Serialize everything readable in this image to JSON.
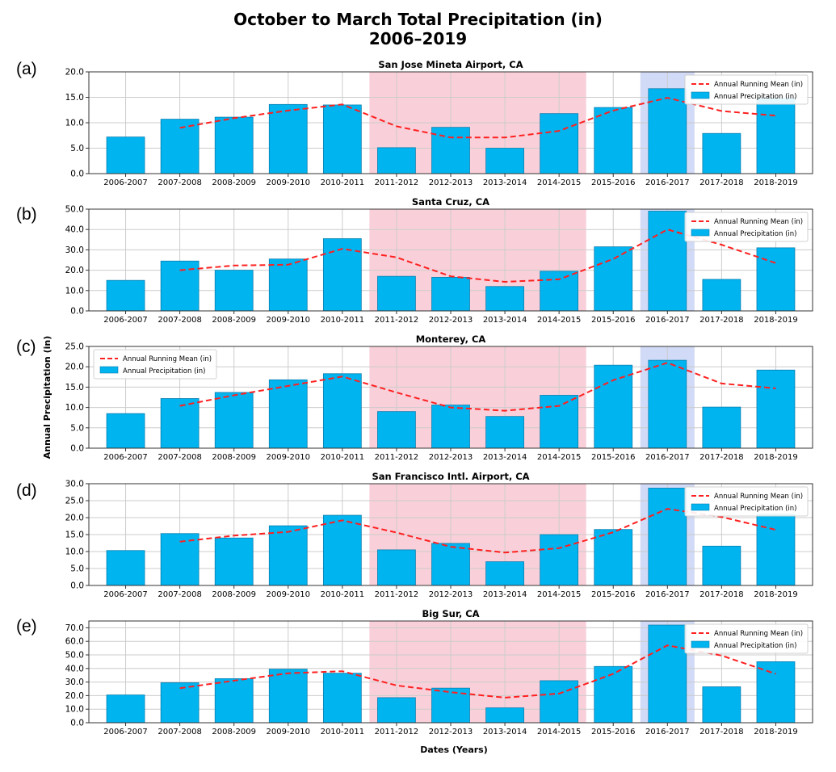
{
  "figure": {
    "title_line1": "October to March Total Precipitation (in)",
    "title_line2": "2006–2019",
    "ylabel": "Annual Precipitation (in)",
    "xlabel": "Dates (Years)",
    "colors": {
      "bar": "#00b4f0",
      "bar_edge": "#0a7fb0",
      "mean_line": "#ff2020",
      "drought_shade": "#f8c8d2",
      "wet_shade": "#c9d3f5",
      "grid": "#cccccc"
    }
  },
  "chart_data": [
    {
      "type": "bar",
      "panel": "(a)",
      "title": "San Jose Mineta Airport, CA",
      "categories": [
        "2006-2007",
        "2007-2008",
        "2008-2009",
        "2009-2010",
        "2010-2011",
        "2011-2012",
        "2012-2013",
        "2013-2014",
        "2014-2015",
        "2015-2016",
        "2016-2017",
        "2017-2018",
        "2018-2019"
      ],
      "series": [
        {
          "name": "Annual Precipitation (in)",
          "kind": "bar",
          "values": [
            7.2,
            10.7,
            11.1,
            13.6,
            13.5,
            5.1,
            9.1,
            5.0,
            11.8,
            13.0,
            16.7,
            7.9,
            14.8
          ]
        },
        {
          "name": "Annual Running Mean (in)",
          "kind": "line",
          "values": [
            null,
            9.0,
            10.9,
            12.4,
            13.6,
            9.3,
            7.1,
            7.1,
            8.4,
            12.4,
            14.9,
            12.3,
            11.4
          ]
        }
      ],
      "ylim": [
        0,
        20
      ],
      "yticks": [
        "0.0",
        "5.0",
        "10.0",
        "15.0",
        "20.0"
      ],
      "ytick_values": [
        0,
        5,
        10,
        15,
        20
      ],
      "legend_position": "top-right",
      "shaded_ranges": [
        {
          "kind": "drought",
          "from": "2011-2012",
          "to": "2014-2015"
        },
        {
          "kind": "wet",
          "from": "2016-2017",
          "to": "2016-2017"
        }
      ]
    },
    {
      "type": "bar",
      "panel": "(b)",
      "title": "Santa Cruz, CA",
      "categories": [
        "2006-2007",
        "2007-2008",
        "2008-2009",
        "2009-2010",
        "2010-2011",
        "2011-2012",
        "2012-2013",
        "2013-2014",
        "2014-2015",
        "2015-2016",
        "2016-2017",
        "2017-2018",
        "2018-2019"
      ],
      "series": [
        {
          "name": "Annual Precipitation (in)",
          "kind": "bar",
          "values": [
            15.0,
            24.5,
            20.0,
            25.5,
            35.5,
            17.0,
            16.5,
            12.0,
            19.5,
            31.5,
            49.0,
            15.5,
            31.0
          ]
        },
        {
          "name": "Annual Running Mean (in)",
          "kind": "line",
          "values": [
            null,
            20.0,
            22.3,
            22.7,
            30.5,
            26.3,
            17.0,
            14.3,
            15.5,
            25.5,
            40.0,
            32.5,
            23.5
          ]
        }
      ],
      "ylim": [
        0,
        50
      ],
      "yticks": [
        "0.0",
        "10.0",
        "20.0",
        "30.0",
        "40.0",
        "50.0"
      ],
      "ytick_values": [
        0,
        10,
        20,
        30,
        40,
        50
      ],
      "legend_position": "top-right",
      "shaded_ranges": [
        {
          "kind": "drought",
          "from": "2011-2012",
          "to": "2014-2015"
        },
        {
          "kind": "wet",
          "from": "2016-2017",
          "to": "2016-2017"
        }
      ]
    },
    {
      "type": "bar",
      "panel": "(c)",
      "title": "Monterey, CA",
      "categories": [
        "2006-2007",
        "2007-2008",
        "2008-2009",
        "2009-2010",
        "2010-2011",
        "2011-2012",
        "2012-2013",
        "2013-2014",
        "2014-2015",
        "2015-2016",
        "2016-2017",
        "2017-2018",
        "2018-2019"
      ],
      "series": [
        {
          "name": "Annual Precipitation (in)",
          "kind": "bar",
          "values": [
            8.5,
            12.2,
            13.7,
            16.8,
            18.3,
            9.0,
            10.6,
            7.8,
            13.0,
            20.4,
            21.6,
            10.1,
            19.2
          ]
        },
        {
          "name": "Annual Running Mean (in)",
          "kind": "line",
          "values": [
            null,
            10.4,
            13.0,
            15.3,
            17.6,
            13.7,
            10.0,
            9.2,
            10.4,
            16.7,
            21.0,
            15.9,
            14.7
          ]
        }
      ],
      "ylim": [
        0,
        25
      ],
      "yticks": [
        "0.0",
        "5.0",
        "10.0",
        "15.0",
        "20.0",
        "25.0"
      ],
      "ytick_values": [
        0,
        5,
        10,
        15,
        20,
        25
      ],
      "legend_position": "top-left",
      "shaded_ranges": [
        {
          "kind": "drought",
          "from": "2011-2012",
          "to": "2014-2015"
        },
        {
          "kind": "wet",
          "from": "2016-2017",
          "to": "2016-2017"
        }
      ]
    },
    {
      "type": "bar",
      "panel": "(d)",
      "title": "San Francisco Intl. Airport, CA",
      "categories": [
        "2006-2007",
        "2007-2008",
        "2008-2009",
        "2009-2010",
        "2010-2011",
        "2011-2012",
        "2012-2013",
        "2013-2014",
        "2014-2015",
        "2015-2016",
        "2016-2017",
        "2017-2018",
        "2018-2019"
      ],
      "series": [
        {
          "name": "Annual Precipitation (in)",
          "kind": "bar",
          "values": [
            10.3,
            15.3,
            14.0,
            17.6,
            20.7,
            10.5,
            12.4,
            7.0,
            15.0,
            16.5,
            28.7,
            11.6,
            21.0
          ]
        },
        {
          "name": "Annual Running Mean (in)",
          "kind": "line",
          "values": [
            null,
            12.9,
            14.7,
            15.8,
            19.2,
            15.6,
            11.4,
            9.7,
            11.0,
            15.7,
            22.6,
            20.2,
            16.4
          ]
        }
      ],
      "ylim": [
        0,
        30
      ],
      "yticks": [
        "0.0",
        "5.0",
        "10.0",
        "15.0",
        "20.0",
        "25.0",
        "30.0"
      ],
      "ytick_values": [
        0,
        5,
        10,
        15,
        20,
        25,
        30
      ],
      "legend_position": "top-right",
      "shaded_ranges": [
        {
          "kind": "drought",
          "from": "2011-2012",
          "to": "2014-2015"
        },
        {
          "kind": "wet",
          "from": "2016-2017",
          "to": "2016-2017"
        }
      ]
    },
    {
      "type": "bar",
      "panel": "(e)",
      "title": "Big Sur, CA",
      "categories": [
        "2006-2007",
        "2007-2008",
        "2008-2009",
        "2009-2010",
        "2010-2011",
        "2011-2012",
        "2012-2013",
        "2013-2014",
        "2014-2015",
        "2015-2016",
        "2016-2017",
        "2017-2018",
        "2018-2019"
      ],
      "series": [
        {
          "name": "Annual Precipitation (in)",
          "kind": "bar",
          "values": [
            20.5,
            29.5,
            32.5,
            39.5,
            36.5,
            18.5,
            25.5,
            11.0,
            31.0,
            41.5,
            72.0,
            26.5,
            45.0
          ]
        },
        {
          "name": "Annual Running Mean (in)",
          "kind": "line",
          "values": [
            null,
            25.5,
            31.0,
            36.5,
            38.0,
            27.5,
            22.5,
            18.5,
            21.5,
            36.0,
            57.0,
            49.5,
            36.0
          ]
        }
      ],
      "ylim": [
        0,
        75
      ],
      "yticks": [
        "0.0",
        "10.0",
        "20.0",
        "30.0",
        "40.0",
        "50.0",
        "60.0",
        "70.0"
      ],
      "ytick_values": [
        0,
        10,
        20,
        30,
        40,
        50,
        60,
        70
      ],
      "legend_position": "top-right",
      "shaded_ranges": [
        {
          "kind": "drought",
          "from": "2011-2012",
          "to": "2014-2015"
        },
        {
          "kind": "wet",
          "from": "2016-2017",
          "to": "2016-2017"
        }
      ]
    }
  ]
}
